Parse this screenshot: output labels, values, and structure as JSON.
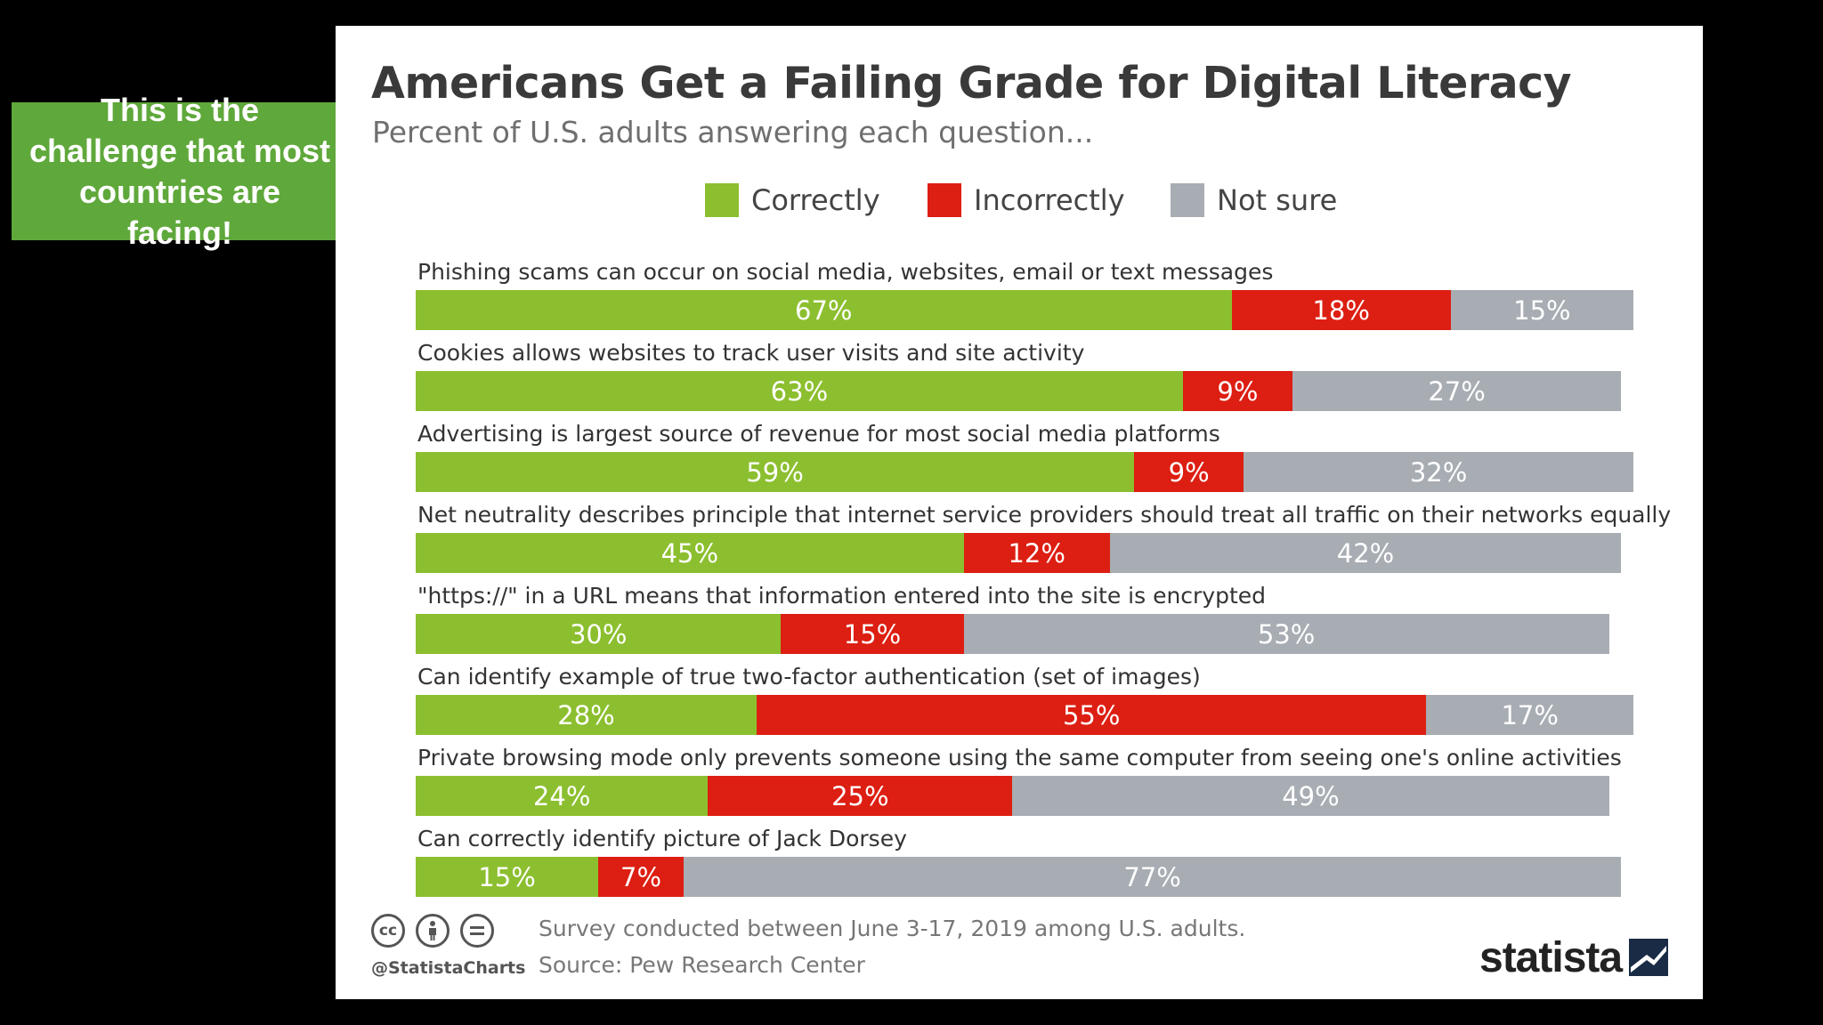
{
  "callout": {
    "text": "This is the challenge that most countries are facing!"
  },
  "colors": {
    "correct": "#8cbf2f",
    "incorrect": "#dd1e12",
    "not_sure": "#a8adb3"
  },
  "chart_data": {
    "type": "bar",
    "orientation": "horizontal",
    "stacked": true,
    "title": "Americans Get a Failing Grade for Digital Literacy",
    "subtitle": "Percent of U.S. adults answering each question...",
    "legend": [
      "Correctly",
      "Incorrectly",
      "Not sure"
    ],
    "legend_position": "top",
    "categories": [
      "Phishing scams can occur on social media, websites, email or text messages",
      "Cookies allows websites to track user visits and site activity",
      "Advertising is largest source of revenue for most social media platforms",
      "Net neutrality describes principle that internet service providers should treat all traffic on their networks equally",
      "\"https://\" in a URL means that information entered into the site is encrypted",
      "Can identify example of true two-factor authentication (set of images)",
      "Private browsing mode only prevents someone using the same computer from seeing one's online activities",
      "Can correctly identify picture of Jack Dorsey"
    ],
    "series": [
      {
        "name": "Correctly",
        "values": [
          67,
          63,
          59,
          45,
          30,
          28,
          24,
          15
        ]
      },
      {
        "name": "Incorrectly",
        "values": [
          18,
          9,
          9,
          12,
          15,
          55,
          25,
          7
        ]
      },
      {
        "name": "Not sure",
        "values": [
          15,
          27,
          32,
          42,
          53,
          17,
          49,
          77
        ]
      }
    ],
    "value_suffix": "%",
    "xlim": [
      0,
      100
    ]
  },
  "footer": {
    "handle": "@StatistaCharts",
    "note": "Survey conducted between June 3-17, 2019 among U.S. adults.",
    "source": "Source: Pew Research Center",
    "brand": "statista",
    "icons": [
      "cc-icon",
      "by-attribution-icon",
      "no-derivatives-icon"
    ]
  }
}
